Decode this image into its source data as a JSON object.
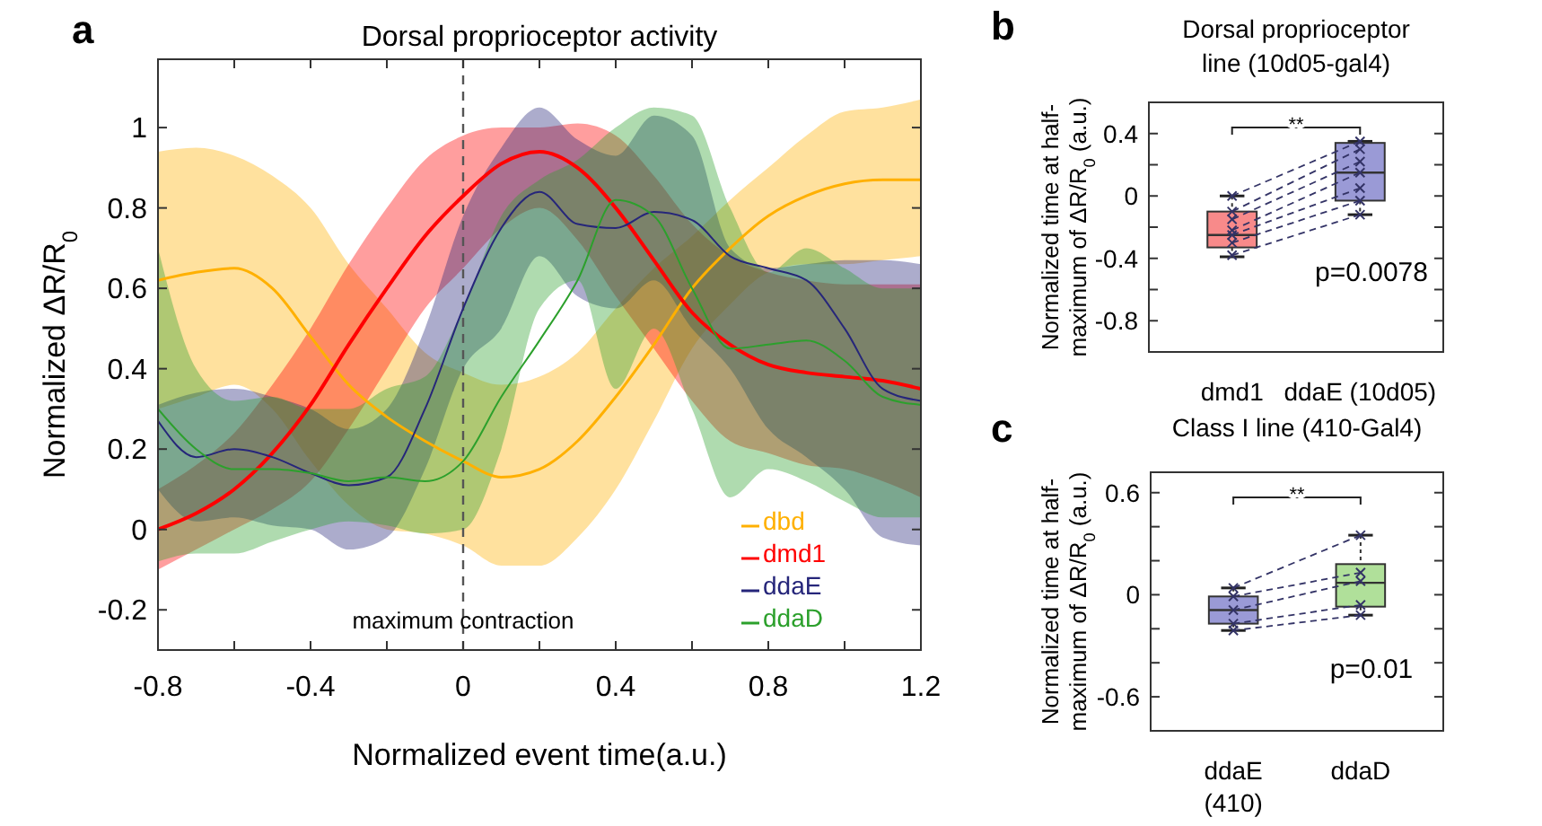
{
  "chart_data": [
    {
      "type": "line",
      "title": "Dorsal proprioceptor activity",
      "xlabel": "Normalized event time(a.u.)",
      "ylabel": "Normalized ΔR/R$_{0}$",
      "annotations": [
        "a"
      ],
      "x": [
        -0.8,
        -0.7,
        -0.6,
        -0.5,
        -0.4,
        -0.3,
        -0.2,
        -0.1,
        0,
        0.1,
        0.2,
        0.3,
        0.4,
        0.5,
        0.6,
        0.7,
        0.8,
        0.9,
        1.0,
        1.1,
        1.2
      ],
      "xlim": [
        -0.8,
        1.2
      ],
      "xticks": [
        -0.8,
        {
          "value": -0.6,
          "label": null
        },
        -0.4,
        {
          "value": -0.2,
          "label": null
        },
        0,
        {
          "value": 0.2,
          "label": null
        },
        0.4,
        {
          "value": 0.6,
          "label": null
        },
        0.8,
        {
          "value": 1.0,
          "label": null
        },
        1.2
      ],
      "ylim": [
        -0.3,
        1.17
      ],
      "yticks": [
        -0.2,
        0,
        0.2,
        0.4,
        0.6,
        0.8,
        1
      ],
      "legend": "bottom right",
      "line_style": "solid",
      "ref_lines": [
        {
          "axis": "x",
          "value": 0,
          "label": "maximum contraction",
          "color": "#555555",
          "line_style": "dashed"
        }
      ],
      "series": [
        {
          "name": "dbd",
          "color": "#ffb000",
          "values": [
            0.62,
            0.64,
            0.65,
            0.6,
            0.48,
            0.36,
            0.28,
            0.22,
            0.17,
            0.13,
            0.15,
            0.22,
            0.33,
            0.46,
            0.6,
            0.7,
            0.78,
            0.83,
            0.86,
            0.87,
            0.87
          ],
          "upper": [
            0.94,
            0.95,
            0.93,
            0.88,
            0.8,
            0.66,
            0.55,
            0.44,
            0.39,
            0.36,
            0.38,
            0.44,
            0.55,
            0.65,
            0.73,
            0.82,
            0.9,
            0.98,
            1.04,
            1.05,
            1.07
          ],
          "lower": [
            0.3,
            0.33,
            0.36,
            0.3,
            0.17,
            0.06,
            0.0,
            -0.01,
            -0.04,
            -0.09,
            -0.09,
            -0.02,
            0.1,
            0.27,
            0.45,
            0.56,
            0.64,
            0.66,
            0.66,
            0.67,
            0.68
          ]
        },
        {
          "name": "dmd1",
          "color": "#ff0000",
          "values": [
            0.0,
            0.04,
            0.1,
            0.19,
            0.31,
            0.46,
            0.6,
            0.73,
            0.83,
            0.91,
            0.94,
            0.9,
            0.8,
            0.67,
            0.54,
            0.46,
            0.41,
            0.39,
            0.38,
            0.37,
            0.35
          ],
          "upper": [
            0.1,
            0.16,
            0.24,
            0.36,
            0.5,
            0.66,
            0.8,
            0.92,
            0.98,
            1.0,
            1.0,
            1.01,
            0.98,
            0.88,
            0.76,
            0.68,
            0.64,
            0.62,
            0.61,
            0.61,
            0.61
          ],
          "lower": [
            -0.1,
            -0.05,
            0.0,
            0.05,
            0.12,
            0.25,
            0.4,
            0.55,
            0.65,
            0.75,
            0.8,
            0.72,
            0.58,
            0.45,
            0.32,
            0.22,
            0.19,
            0.16,
            0.15,
            0.12,
            0.08
          ]
        },
        {
          "name": "ddaE",
          "color": "#26267a",
          "values": [
            0.27,
            0.18,
            0.2,
            0.18,
            0.14,
            0.11,
            0.13,
            0.3,
            0.55,
            0.75,
            0.84,
            0.76,
            0.75,
            0.79,
            0.77,
            0.68,
            0.65,
            0.62,
            0.5,
            0.35,
            0.32
          ],
          "upper": [
            0.31,
            0.34,
            0.35,
            0.33,
            0.3,
            0.25,
            0.3,
            0.5,
            0.78,
            0.95,
            1.05,
            0.97,
            0.93,
            1.03,
            0.98,
            0.7,
            0.65,
            0.66,
            0.67,
            0.67,
            0.66
          ],
          "lower": [
            0.1,
            0.02,
            0.03,
            0.01,
            0.0,
            -0.05,
            -0.02,
            0.15,
            0.4,
            0.5,
            0.68,
            0.58,
            0.55,
            0.62,
            0.5,
            0.4,
            0.25,
            0.18,
            0.1,
            -0.02,
            -0.04
          ]
        },
        {
          "name": "ddaD",
          "color": "#2ca02c",
          "values": [
            0.3,
            0.2,
            0.15,
            0.15,
            0.14,
            0.12,
            0.13,
            0.12,
            0.17,
            0.33,
            0.47,
            0.62,
            0.82,
            0.78,
            0.6,
            0.45,
            0.46,
            0.47,
            0.42,
            0.33,
            0.31
          ],
          "upper": [
            0.7,
            0.4,
            0.32,
            0.33,
            0.3,
            0.3,
            0.35,
            0.38,
            0.55,
            0.78,
            0.87,
            0.92,
            1.0,
            1.05,
            1.03,
            0.8,
            0.64,
            0.7,
            0.65,
            0.6,
            0.6
          ],
          "lower": [
            -0.08,
            -0.06,
            -0.06,
            -0.03,
            0.0,
            0.02,
            0.01,
            -0.01,
            0.0,
            0.2,
            0.55,
            0.62,
            0.35,
            0.5,
            0.3,
            0.08,
            0.15,
            0.12,
            0.07,
            0.03,
            0.03
          ]
        }
      ]
    },
    {
      "type": "box",
      "title": "Dorsal proprioceptor line (10d05-gal4)",
      "ylabel": "Normalized time at half-maximum of ΔR/R$_{0}$ (a.u.)",
      "annotations": [
        "b",
        "**",
        "p=0.0078"
      ],
      "categories": [
        "dmd1",
        "ddaE (10d05)"
      ],
      "colors": [
        "#f88a8a",
        "#9a9ad6"
      ],
      "boxes": [
        {
          "low": -0.39,
          "q1": -0.33,
          "median": -0.25,
          "q3": -0.1,
          "high": 0.0
        },
        {
          "low": -0.12,
          "q1": -0.03,
          "median": 0.15,
          "q3": 0.34,
          "high": 0.35
        }
      ],
      "ylim": [
        -1.0,
        0.6
      ],
      "yticks": [
        {
          "value": -0.8,
          "label": "-0.8"
        },
        {
          "value": -0.6,
          "label": null
        },
        {
          "value": -0.4,
          "label": "-0.4"
        },
        {
          "value": -0.2,
          "label": null
        },
        0,
        {
          "value": 0.2,
          "label": null
        },
        0.4
      ],
      "marker": "cross",
      "line_style": "dashed",
      "series": [
        {
          "type": "line",
          "color": "#333366",
          "values": [
            0.0,
            0.35
          ]
        },
        {
          "type": "line",
          "color": "#333366",
          "values": [
            -0.1,
            0.3
          ]
        },
        {
          "type": "line",
          "color": "#333366",
          "values": [
            -0.15,
            0.22
          ]
        },
        {
          "type": "line",
          "color": "#333366",
          "values": [
            -0.22,
            0.15
          ]
        },
        {
          "type": "line",
          "color": "#333366",
          "values": [
            -0.25,
            0.05
          ]
        },
        {
          "type": "line",
          "color": "#333366",
          "values": [
            -0.3,
            -0.03
          ]
        },
        {
          "type": "line",
          "color": "#333366",
          "values": [
            -0.38,
            -0.12
          ]
        }
      ]
    },
    {
      "type": "box",
      "title": "Class I line (410-Gal4)",
      "ylabel": "Normalized time at half-maximum of ΔR/R$_{0}$ (a.u.)",
      "annotations": [
        "c",
        "**",
        "p=0.01"
      ],
      "categories": [
        "ddaE (410)",
        "ddaD"
      ],
      "colors": [
        "#9a9ad6",
        "#b0e09a"
      ],
      "boxes": [
        {
          "low": -0.21,
          "q1": -0.17,
          "median": -0.09,
          "q3": -0.01,
          "high": 0.04
        },
        {
          "low": -0.12,
          "q1": -0.07,
          "median": 0.07,
          "q3": 0.18,
          "high": 0.35
        }
      ],
      "ylim": [
        -0.8,
        0.72
      ],
      "yticks": [
        {
          "value": -0.6,
          "label": "-0.6"
        },
        {
          "value": -0.4,
          "label": null
        },
        {
          "value": -0.2,
          "label": null
        },
        0,
        {
          "value": 0.2,
          "label": null
        },
        {
          "value": 0.4,
          "label": null
        },
        0.6
      ],
      "marker": "cross",
      "line_style": "dashed",
      "series": [
        {
          "type": "line",
          "color": "#333366",
          "values": [
            0.04,
            0.35
          ]
        },
        {
          "type": "line",
          "color": "#333366",
          "values": [
            -0.01,
            0.13
          ]
        },
        {
          "type": "line",
          "color": "#333366",
          "values": [
            -0.09,
            0.08
          ]
        },
        {
          "type": "line",
          "color": "#333366",
          "values": [
            -0.17,
            -0.06
          ]
        },
        {
          "type": "line",
          "color": "#333366",
          "values": [
            -0.21,
            -0.12
          ]
        }
      ]
    }
  ]
}
